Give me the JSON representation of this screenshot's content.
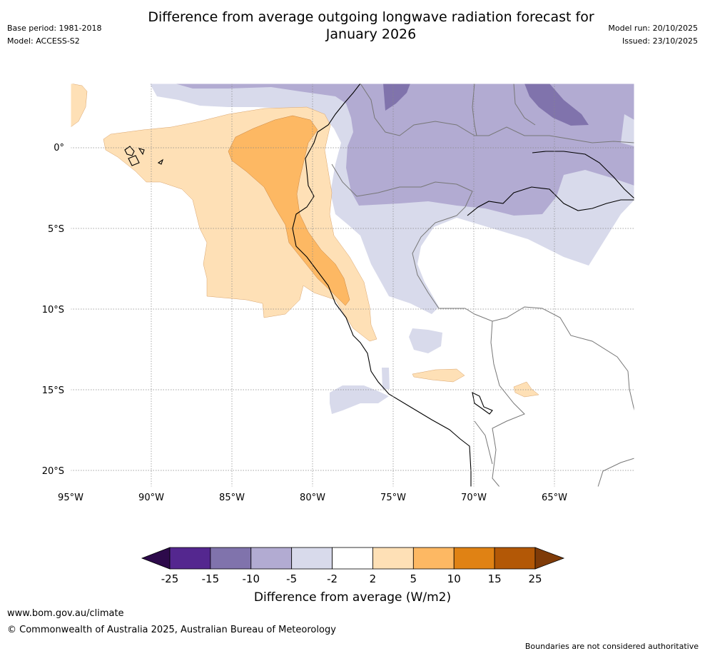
{
  "title": {
    "line1": "Difference from average outgoing longwave radiation forecast for",
    "line2": "January 2026"
  },
  "meta": {
    "base_period": "Base period: 1981-2018",
    "model": "Model: ACCESS-S2",
    "model_run": "Model run: 20/10/2025",
    "issued": "Issued: 23/10/2025"
  },
  "map": {
    "lat_labels": [
      "0°",
      "5°S",
      "10°S",
      "15°S",
      "20°S"
    ],
    "lon_labels": [
      "95°W",
      "90°W",
      "85°W",
      "80°W",
      "75°W",
      "70°W",
      "65°W"
    ],
    "ocean_color": "#ffffff",
    "coast_color": "#000000",
    "border_color": "#777777"
  },
  "legend": {
    "title": "Difference from average (W/m2)",
    "ticks": [
      "-25",
      "-15",
      "-10",
      "-5",
      "-2",
      "2",
      "5",
      "10",
      "15",
      "25"
    ],
    "colors": [
      "#2d0a4b",
      "#54278f",
      "#8073ac",
      "#b2abd2",
      "#d8daeb",
      "#ffffff",
      "#fee0b6",
      "#fdb863",
      "#e08214",
      "#b35806",
      "#7f3b08"
    ]
  },
  "footer": {
    "url": "www.bom.gov.au/climate",
    "copyright": "© Commonwealth of Australia 2025, Australian Bureau of Meteorology",
    "note": "Boundaries are not considered authoritative"
  }
}
